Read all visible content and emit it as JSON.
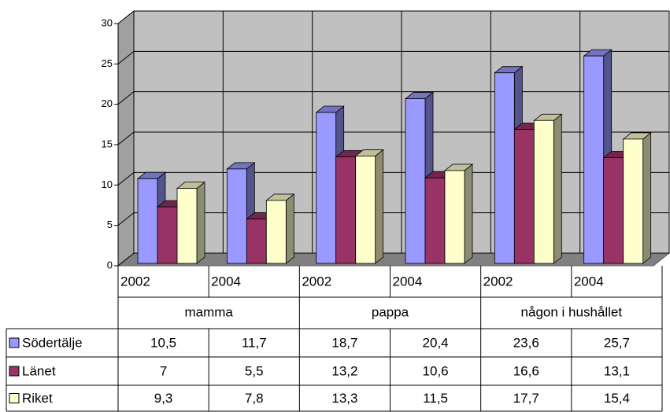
{
  "chart_data": {
    "type": "bar3d",
    "categories": [
      "2002",
      "2004",
      "2002",
      "2004",
      "2002",
      "2004"
    ],
    "groups": [
      "mamma",
      "pappa",
      "någon i hushållet"
    ],
    "series": [
      {
        "name": "Södertälje",
        "color": "#9999ff",
        "values": [
          10.5,
          11.7,
          18.7,
          20.4,
          23.6,
          25.7
        ],
        "value_labels": [
          "10,5",
          "11,7",
          "18,7",
          "20,4",
          "23,6",
          "25,7"
        ]
      },
      {
        "name": "Länet",
        "color": "#993366",
        "values": [
          7,
          5.5,
          13.2,
          10.6,
          16.6,
          13.1
        ],
        "value_labels": [
          "7",
          "5,5",
          "13,2",
          "10,6",
          "16,6",
          "13,1"
        ]
      },
      {
        "name": "Riket",
        "color": "#ffffcc",
        "values": [
          9.3,
          7.8,
          13.3,
          11.5,
          17.7,
          15.4
        ],
        "value_labels": [
          "9,3",
          "7,8",
          "13,3",
          "11,5",
          "17,7",
          "15,4"
        ]
      }
    ],
    "ylim": [
      0,
      30
    ],
    "yticks": [
      0,
      5,
      10,
      15,
      20,
      25,
      30
    ],
    "grid": true
  }
}
